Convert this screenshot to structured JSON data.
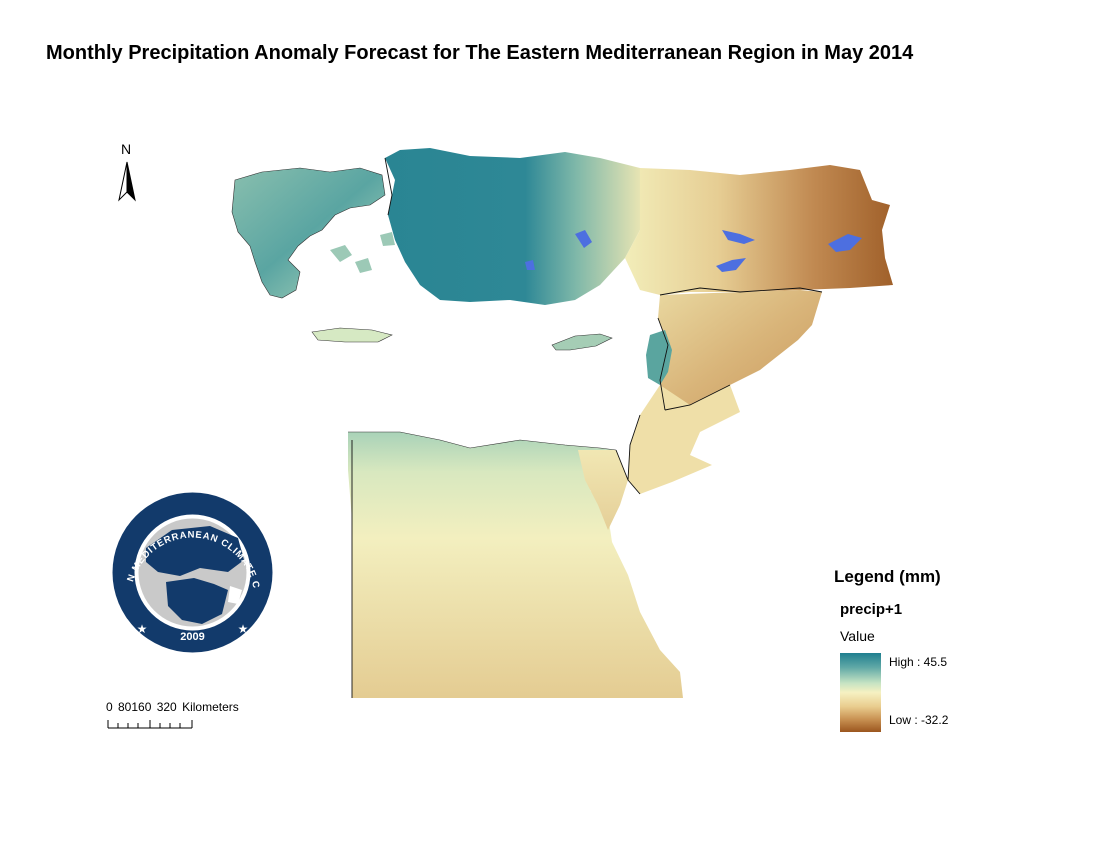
{
  "title": "Monthly Precipitation Anomaly Forecast for The Eastern Mediterranean Region in May 2014",
  "north_arrow": {
    "label": "N",
    "icon": "north-arrow-icon"
  },
  "legend": {
    "title": "Legend (mm)",
    "layer": "precip+1",
    "value_label": "Value",
    "high_label": "High : 45.5",
    "low_label": "Low : -32.2",
    "high_value": 45.5,
    "low_value": -32.2,
    "color_ramp": [
      "#1f7f8f",
      "#5fa8a6",
      "#c5e3c3",
      "#f6f1c2",
      "#e9cc8e",
      "#c89152",
      "#9b561f"
    ]
  },
  "scale_bar": {
    "label": "0  80160    320 Kilometers"
  },
  "logo": {
    "text": "EASTERN MEDITERRANEAN CLIMATE CENTRE",
    "year": "2009",
    "colors": {
      "navy": "#123a6b",
      "gray": "#c9c9c9"
    }
  }
}
